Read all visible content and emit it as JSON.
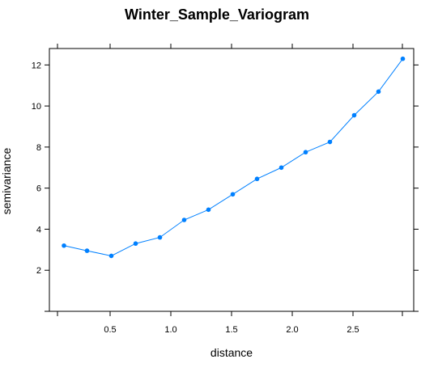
{
  "chart_data": {
    "type": "line",
    "title": "Winter_Sample_Variogram",
    "xlabel": "distance",
    "ylabel": "semivariance",
    "xlim": [
      -0.0,
      3.0
    ],
    "ylim": [
      0.0,
      12.8
    ],
    "xticks": [
      0.5,
      1.0,
      1.5,
      2.0,
      2.5
    ],
    "xtick_labels": [
      "0.5",
      "1.0",
      "1.5",
      "2.0",
      "2.5"
    ],
    "yticks": [
      2,
      4,
      6,
      8,
      10,
      12
    ],
    "ytick_labels": [
      "2",
      "4",
      "6",
      "8",
      "10",
      "12"
    ],
    "grid": false,
    "series": [
      {
        "color": "#0080ff",
        "x": [
          0.12,
          0.31,
          0.51,
          0.71,
          0.91,
          1.11,
          1.31,
          1.51,
          1.71,
          1.91,
          2.11,
          2.31,
          2.51,
          2.71,
          2.91
        ],
        "y": [
          3.2,
          2.95,
          2.7,
          3.3,
          3.6,
          4.45,
          4.95,
          5.7,
          6.45,
          7.0,
          7.75,
          8.25,
          9.55,
          10.7,
          12.3
        ]
      }
    ]
  }
}
